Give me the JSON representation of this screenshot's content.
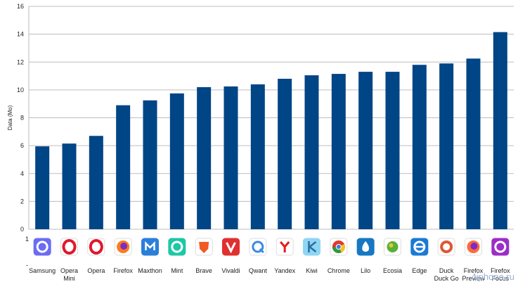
{
  "chart_data": {
    "type": "bar",
    "ylabel": "Data (Mo)",
    "ylim": [
      0,
      16
    ],
    "yticks": [
      0,
      2,
      4,
      6,
      8,
      10,
      12,
      14,
      16
    ],
    "grid": true,
    "bar_color": "#004586",
    "categories": [
      [
        "Samsung"
      ],
      [
        "Opera",
        "Mini"
      ],
      [
        "Opera"
      ],
      [
        "Firefox"
      ],
      [
        "Maxthon"
      ],
      [
        "Mint"
      ],
      [
        "Brave"
      ],
      [
        "Vivaldi"
      ],
      [
        "Qwant"
      ],
      [
        "Yandex"
      ],
      [
        "Kiwi"
      ],
      [
        "Chrome"
      ],
      [
        "Lilo"
      ],
      [
        "Ecosia"
      ],
      [
        "Edge"
      ],
      [
        "Duck",
        "Duck Go"
      ],
      [
        "Firefox",
        "Preview"
      ],
      [
        "Firefox",
        "Focus"
      ]
    ],
    "icons": [
      "samsung-internet-icon",
      "opera-mini-icon",
      "opera-icon",
      "firefox-icon",
      "maxthon-icon",
      "mint-icon",
      "brave-icon",
      "vivaldi-icon",
      "qwant-icon",
      "yandex-icon",
      "kiwi-icon",
      "chrome-icon",
      "lilo-icon",
      "ecosia-icon",
      "edge-icon",
      "duckduckgo-icon",
      "firefox-preview-icon",
      "firefox-focus-icon"
    ],
    "values": [
      5.95,
      6.15,
      6.7,
      8.9,
      9.25,
      9.75,
      10.2,
      10.25,
      10.4,
      10.8,
      11.05,
      11.15,
      11.3,
      11.3,
      11.8,
      11.9,
      12.25,
      14.15
    ]
  },
  "watermark": "4iphone.ru",
  "small_marks": [
    "1",
    "-"
  ]
}
